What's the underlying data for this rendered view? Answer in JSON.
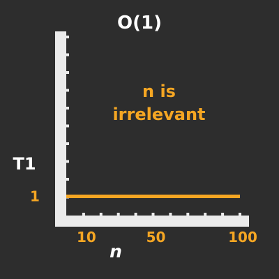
{
  "chart_data": {
    "type": "line",
    "title": "O(1)",
    "annotation": [
      "n is",
      "irrelevant"
    ],
    "xlabel": "n",
    "ylabel": "T1",
    "x_tick_labels": [
      {
        "x": 10,
        "label": "10"
      },
      {
        "x": 50,
        "label": "50"
      },
      {
        "x": 100,
        "label": "100"
      }
    ],
    "y_tick_labels": [
      {
        "y": 1,
        "label": "1"
      }
    ],
    "xlim": [
      0,
      100
    ],
    "ylim": [
      0,
      10
    ],
    "series": [
      {
        "x": [
          0,
          100
        ],
        "y": [
          1,
          1
        ]
      }
    ],
    "grid": false,
    "colors": {
      "background": "#2d2d2d",
      "axis": "#ebebeb",
      "tick": "#ebebeb",
      "text": "#ffffff",
      "accent": "#f5a623"
    }
  }
}
